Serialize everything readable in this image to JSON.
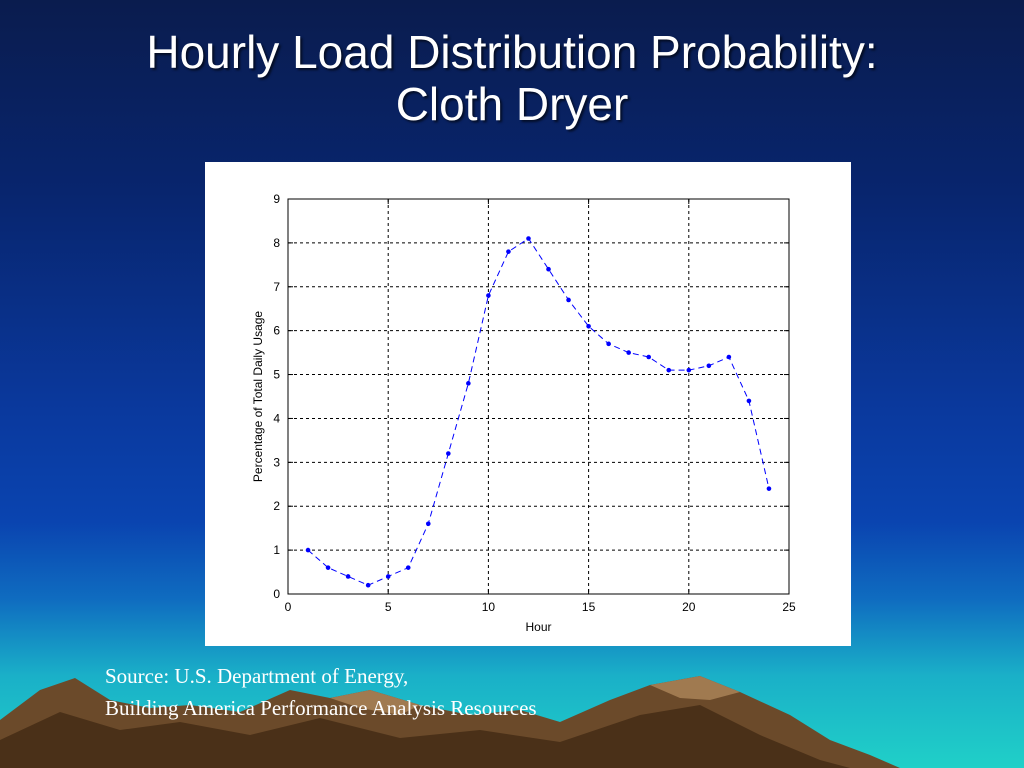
{
  "slide": {
    "title_line1": "Hourly Load Distribution Probability:",
    "title_line2": "Cloth Dryer",
    "source_line1": "Source: U.S. Department of Energy,",
    "source_line2": "Building America Performance Analysis Resources"
  },
  "colors": {
    "series": "#0000ff",
    "grid": "#000000",
    "panel": "#ffffff"
  },
  "chart_data": {
    "type": "line",
    "title": "",
    "xlabel": "Hour",
    "ylabel": "Percentage of Total Daily Usage",
    "xlim": [
      0,
      25
    ],
    "ylim": [
      0,
      9
    ],
    "xticks": [
      0,
      5,
      10,
      15,
      20,
      25
    ],
    "yticks": [
      0,
      1,
      2,
      3,
      4,
      5,
      6,
      7,
      8,
      9
    ],
    "grid": true,
    "line_style": "dashed with point markers",
    "series": [
      {
        "x": [
          1,
          2,
          3,
          4,
          5,
          6,
          7,
          8,
          9,
          10,
          11,
          12,
          13,
          14,
          15,
          16,
          17,
          18,
          19,
          20,
          21,
          22,
          23,
          24
        ],
        "y": [
          1.0,
          0.6,
          0.4,
          0.2,
          0.4,
          0.6,
          1.6,
          3.2,
          4.8,
          6.8,
          7.8,
          8.1,
          7.4,
          6.7,
          6.1,
          5.7,
          5.5,
          5.4,
          5.1,
          5.1,
          5.2,
          5.4,
          4.4,
          2.4
        ]
      }
    ]
  }
}
